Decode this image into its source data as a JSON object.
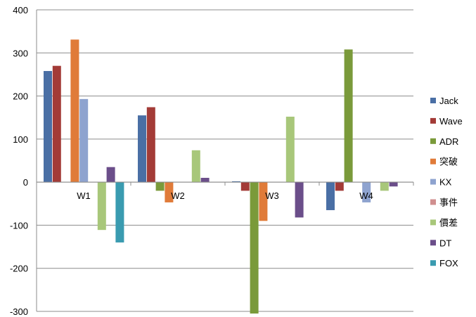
{
  "chart_data": {
    "type": "bar",
    "categories": [
      "W1",
      "W2",
      "W3",
      "W4"
    ],
    "ylim": [
      -300,
      400
    ],
    "yticks": [
      400,
      300,
      200,
      100,
      0,
      -100,
      -200,
      -300
    ],
    "grid": true,
    "legend_position": "right",
    "series": [
      {
        "name": "Jack",
        "color": "#4a6fa5",
        "values": [
          258,
          155,
          2,
          -65
        ]
      },
      {
        "name": "Wave",
        "color": "#a33b37",
        "values": [
          270,
          174,
          -20,
          -20
        ]
      },
      {
        "name": "ADR",
        "color": "#7a9a3a",
        "values": [
          0,
          -20,
          -305,
          308
        ]
      },
      {
        "name": "突破",
        "color": "#e07b39",
        "values": [
          331,
          -47,
          -90,
          0
        ]
      },
      {
        "name": "KX",
        "color": "#8ea3cf",
        "values": [
          193,
          0,
          0,
          -47
        ]
      },
      {
        "name": "事件",
        "color": "#d08f8f",
        "values": [
          0,
          0,
          0,
          0
        ]
      },
      {
        "name": "價差",
        "color": "#a8c77a",
        "values": [
          -111,
          74,
          152,
          -20
        ]
      },
      {
        "name": "DT",
        "color": "#6b4e8a",
        "values": [
          35,
          10,
          -82,
          -10
        ]
      },
      {
        "name": "FOX",
        "color": "#3a9bb0",
        "values": [
          -140,
          0,
          0,
          0
        ]
      }
    ]
  }
}
